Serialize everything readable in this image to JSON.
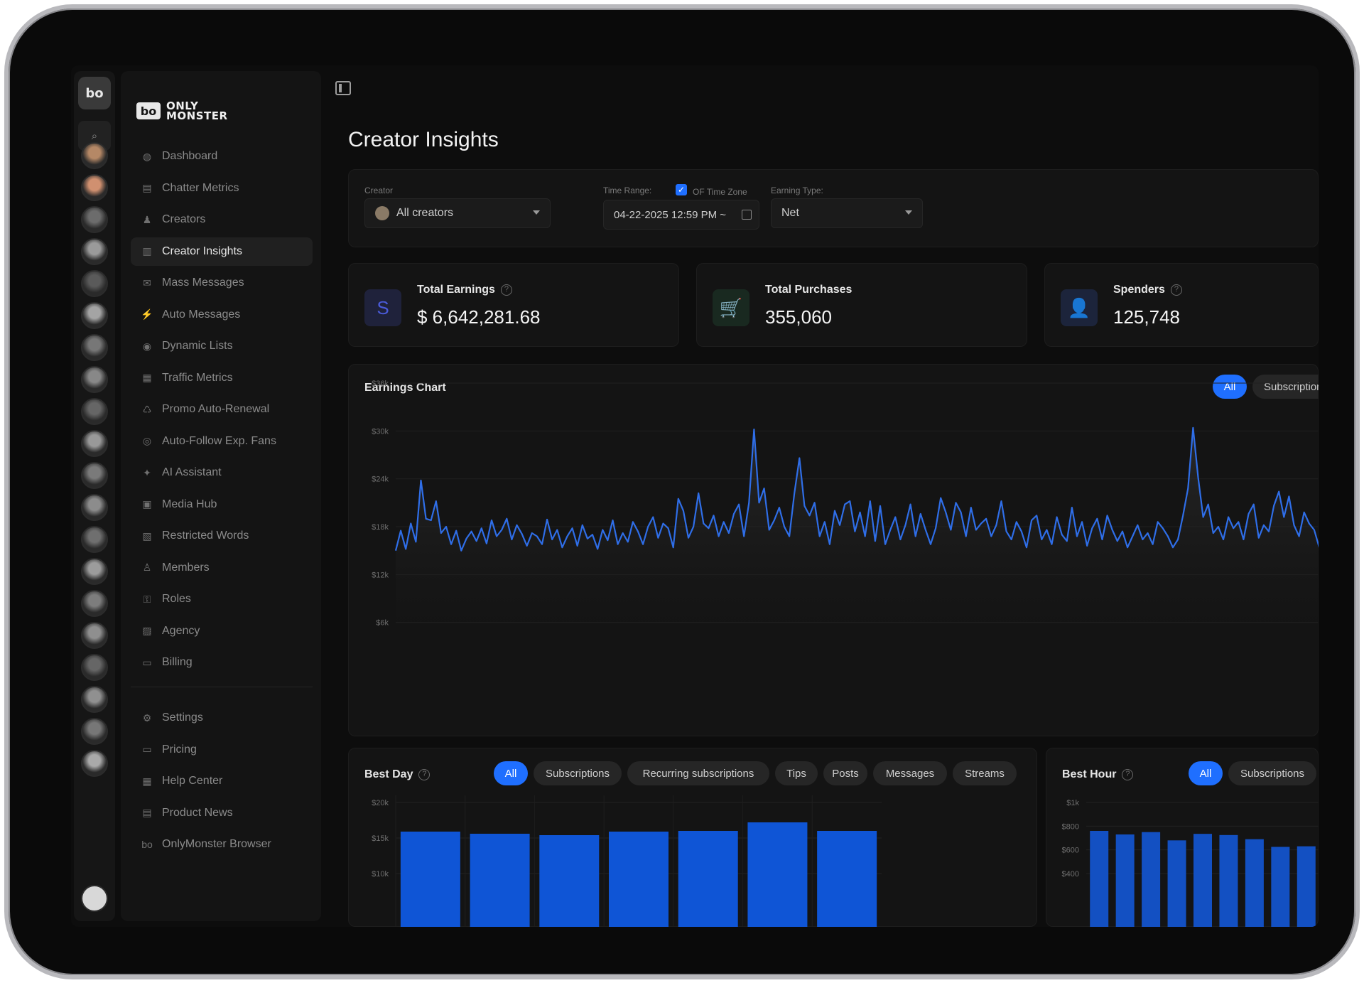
{
  "rail": {
    "logo": "bo"
  },
  "brand": {
    "mark": "bo",
    "line1": "ONLY",
    "line2": "MONSTER"
  },
  "sidebar": {
    "items": [
      {
        "label": "Dashboard",
        "icon": "dashboard-icon",
        "glyph": "◍"
      },
      {
        "label": "Chatter Metrics",
        "icon": "metrics-icon",
        "glyph": "▤"
      },
      {
        "label": "Creators",
        "icon": "creators-icon",
        "glyph": "♟"
      },
      {
        "label": "Creator Insights",
        "icon": "bar-chart-icon",
        "glyph": "▥",
        "active": true
      },
      {
        "label": "Mass Messages",
        "icon": "chat-icon",
        "glyph": "✉"
      },
      {
        "label": "Auto Messages",
        "icon": "bolt-icon",
        "glyph": "⚡"
      },
      {
        "label": "Dynamic Lists",
        "icon": "list-icon",
        "glyph": "◉"
      },
      {
        "label": "Traffic Metrics",
        "icon": "traffic-icon",
        "glyph": "▦"
      },
      {
        "label": "Promo Auto-Renewal",
        "icon": "promo-icon",
        "glyph": "♺"
      },
      {
        "label": "Auto-Follow Exp. Fans",
        "icon": "follow-icon",
        "glyph": "◎"
      },
      {
        "label": "AI Assistant",
        "icon": "assistant-icon",
        "glyph": "✦"
      },
      {
        "label": "Media Hub",
        "icon": "media-icon",
        "glyph": "▣"
      },
      {
        "label": "Restricted Words",
        "icon": "restricted-icon",
        "glyph": "▧"
      },
      {
        "label": "Members",
        "icon": "members-icon",
        "glyph": "♙"
      },
      {
        "label": "Roles",
        "icon": "lock-icon",
        "glyph": "⚿"
      },
      {
        "label": "Agency",
        "icon": "agency-icon",
        "glyph": "▨"
      },
      {
        "label": "Billing",
        "icon": "billing-icon",
        "glyph": "▭"
      }
    ],
    "bottom": [
      {
        "label": "Settings",
        "icon": "gear-icon",
        "glyph": "⚙"
      },
      {
        "label": "Pricing",
        "icon": "pricing-icon",
        "glyph": "▭"
      },
      {
        "label": "Help Center",
        "icon": "help-icon",
        "glyph": "▦"
      },
      {
        "label": "Product News",
        "icon": "news-icon",
        "glyph": "▤"
      },
      {
        "label": "OnlyMonster Browser",
        "icon": "browser-icon",
        "glyph": "bo"
      }
    ]
  },
  "page": {
    "title": "Creator Insights"
  },
  "filters": {
    "creator_label": "Creator",
    "creator_value": "All creators",
    "time_range_label": "Time Range:",
    "of_time_zone": "OF Time Zone",
    "time_range_value": "04-22-2025 12:59 PM ~",
    "earning_type_label": "Earning Type:",
    "earning_type_value": "Net"
  },
  "kpis": [
    {
      "title": "Total Earnings",
      "value": "$ 6,642,281.68",
      "icon": "dollar-icon",
      "glyph": "S",
      "help": true,
      "color": "#4a5bd9"
    },
    {
      "title": "Total Purchases",
      "value": "355,060",
      "icon": "cart-icon",
      "glyph": "🛒",
      "help": false,
      "color": "#2f7d4f"
    },
    {
      "title": "Spenders",
      "value": "125,748",
      "icon": "user-icon",
      "glyph": "👤",
      "help": true,
      "color": "#3b63d6"
    }
  ],
  "earnings_chart": {
    "title": "Earnings Chart",
    "pills": [
      "All",
      "Subscriptions"
    ],
    "active_pill": "All"
  },
  "best_day": {
    "title": "Best Day",
    "pills": [
      "All",
      "Subscriptions",
      "Recurring subscriptions",
      "Tips",
      "Posts",
      "Messages",
      "Streams"
    ]
  },
  "best_hour": {
    "title": "Best Hour",
    "pills": [
      "All",
      "Subscriptions"
    ]
  },
  "accent": "#1f6fff",
  "chart_data": [
    {
      "type": "area",
      "title": "Earnings Chart",
      "ylim": [
        0,
        36000
      ],
      "yticks": [
        "$36k",
        "$30k",
        "$24k",
        "$18k",
        "$12k",
        "$6k"
      ],
      "ytick_values": [
        36000,
        30000,
        24000,
        18000,
        12000,
        6000
      ],
      "y": [
        15000,
        17500,
        15200,
        18400,
        16100,
        23800,
        19000,
        18800,
        21200,
        17200,
        18000,
        15800,
        17500,
        15000,
        16500,
        17400,
        16200,
        17800,
        15900,
        18800,
        16800,
        17600,
        19000,
        16400,
        18200,
        17100,
        15600,
        17200,
        16800,
        15800,
        18900,
        16400,
        17600,
        15400,
        16800,
        17800,
        15600,
        18200,
        16500,
        17000,
        15200,
        17600,
        16300,
        18800,
        15800,
        17200,
        16100,
        18600,
        17400,
        15800,
        18000,
        19200,
        16600,
        18400,
        17800,
        15400,
        21500,
        20000,
        16600,
        18000,
        22200,
        18400,
        17800,
        19400,
        16800,
        18600,
        17200,
        19600,
        20800,
        16800,
        21000,
        30200,
        21000,
        22800,
        17600,
        18800,
        20400,
        18000,
        16800,
        22200,
        26600,
        20600,
        19400,
        21000,
        16800,
        18600,
        15800,
        20000,
        18200,
        20800,
        21200,
        17400,
        19800,
        16800,
        21200,
        16200,
        20600,
        15800,
        17600,
        19200,
        16400,
        18200,
        20800,
        16800,
        19600,
        17600,
        15800,
        17800,
        21600,
        19800,
        17600,
        21000,
        19800,
        16800,
        20400,
        17600,
        18400,
        19000,
        16800,
        18200,
        21200,
        17400,
        16400,
        18600,
        17400,
        15400,
        18800,
        19400,
        16400,
        17600,
        15800,
        19200,
        17000,
        16200,
        20400,
        16800,
        18600,
        15600,
        17800,
        19000,
        16400,
        19400,
        17600,
        16200,
        17400,
        15400,
        16800,
        18200,
        16400,
        17200,
        15800,
        18600,
        17800,
        16800,
        15400,
        16400,
        19400,
        22800,
        30400,
        24200,
        19200,
        20800,
        17200,
        18000,
        16400,
        19200,
        17800,
        18600,
        16400,
        19600,
        20800,
        16600,
        18200,
        17400,
        20600,
        22400,
        19200,
        21800,
        18200,
        16800,
        19800,
        18400,
        17600,
        15400
      ]
    },
    {
      "type": "bar",
      "title": "Best Day",
      "ylim": [
        10000,
        20000
      ],
      "yticks": [
        "$20k",
        "$15k",
        "$10k"
      ],
      "ytick_values": [
        20000,
        15000,
        10000
      ],
      "values": [
        15900,
        15600,
        15400,
        15900,
        16000,
        17200,
        16000
      ]
    },
    {
      "type": "bar",
      "title": "Best Hour",
      "ylim": [
        400,
        1000
      ],
      "yticks": [
        "$1k",
        "$800",
        "$600",
        "$400"
      ],
      "ytick_values": [
        1000,
        800,
        600,
        400
      ],
      "values": [
        760,
        730,
        750,
        680,
        735,
        725,
        690,
        625,
        630
      ]
    }
  ]
}
